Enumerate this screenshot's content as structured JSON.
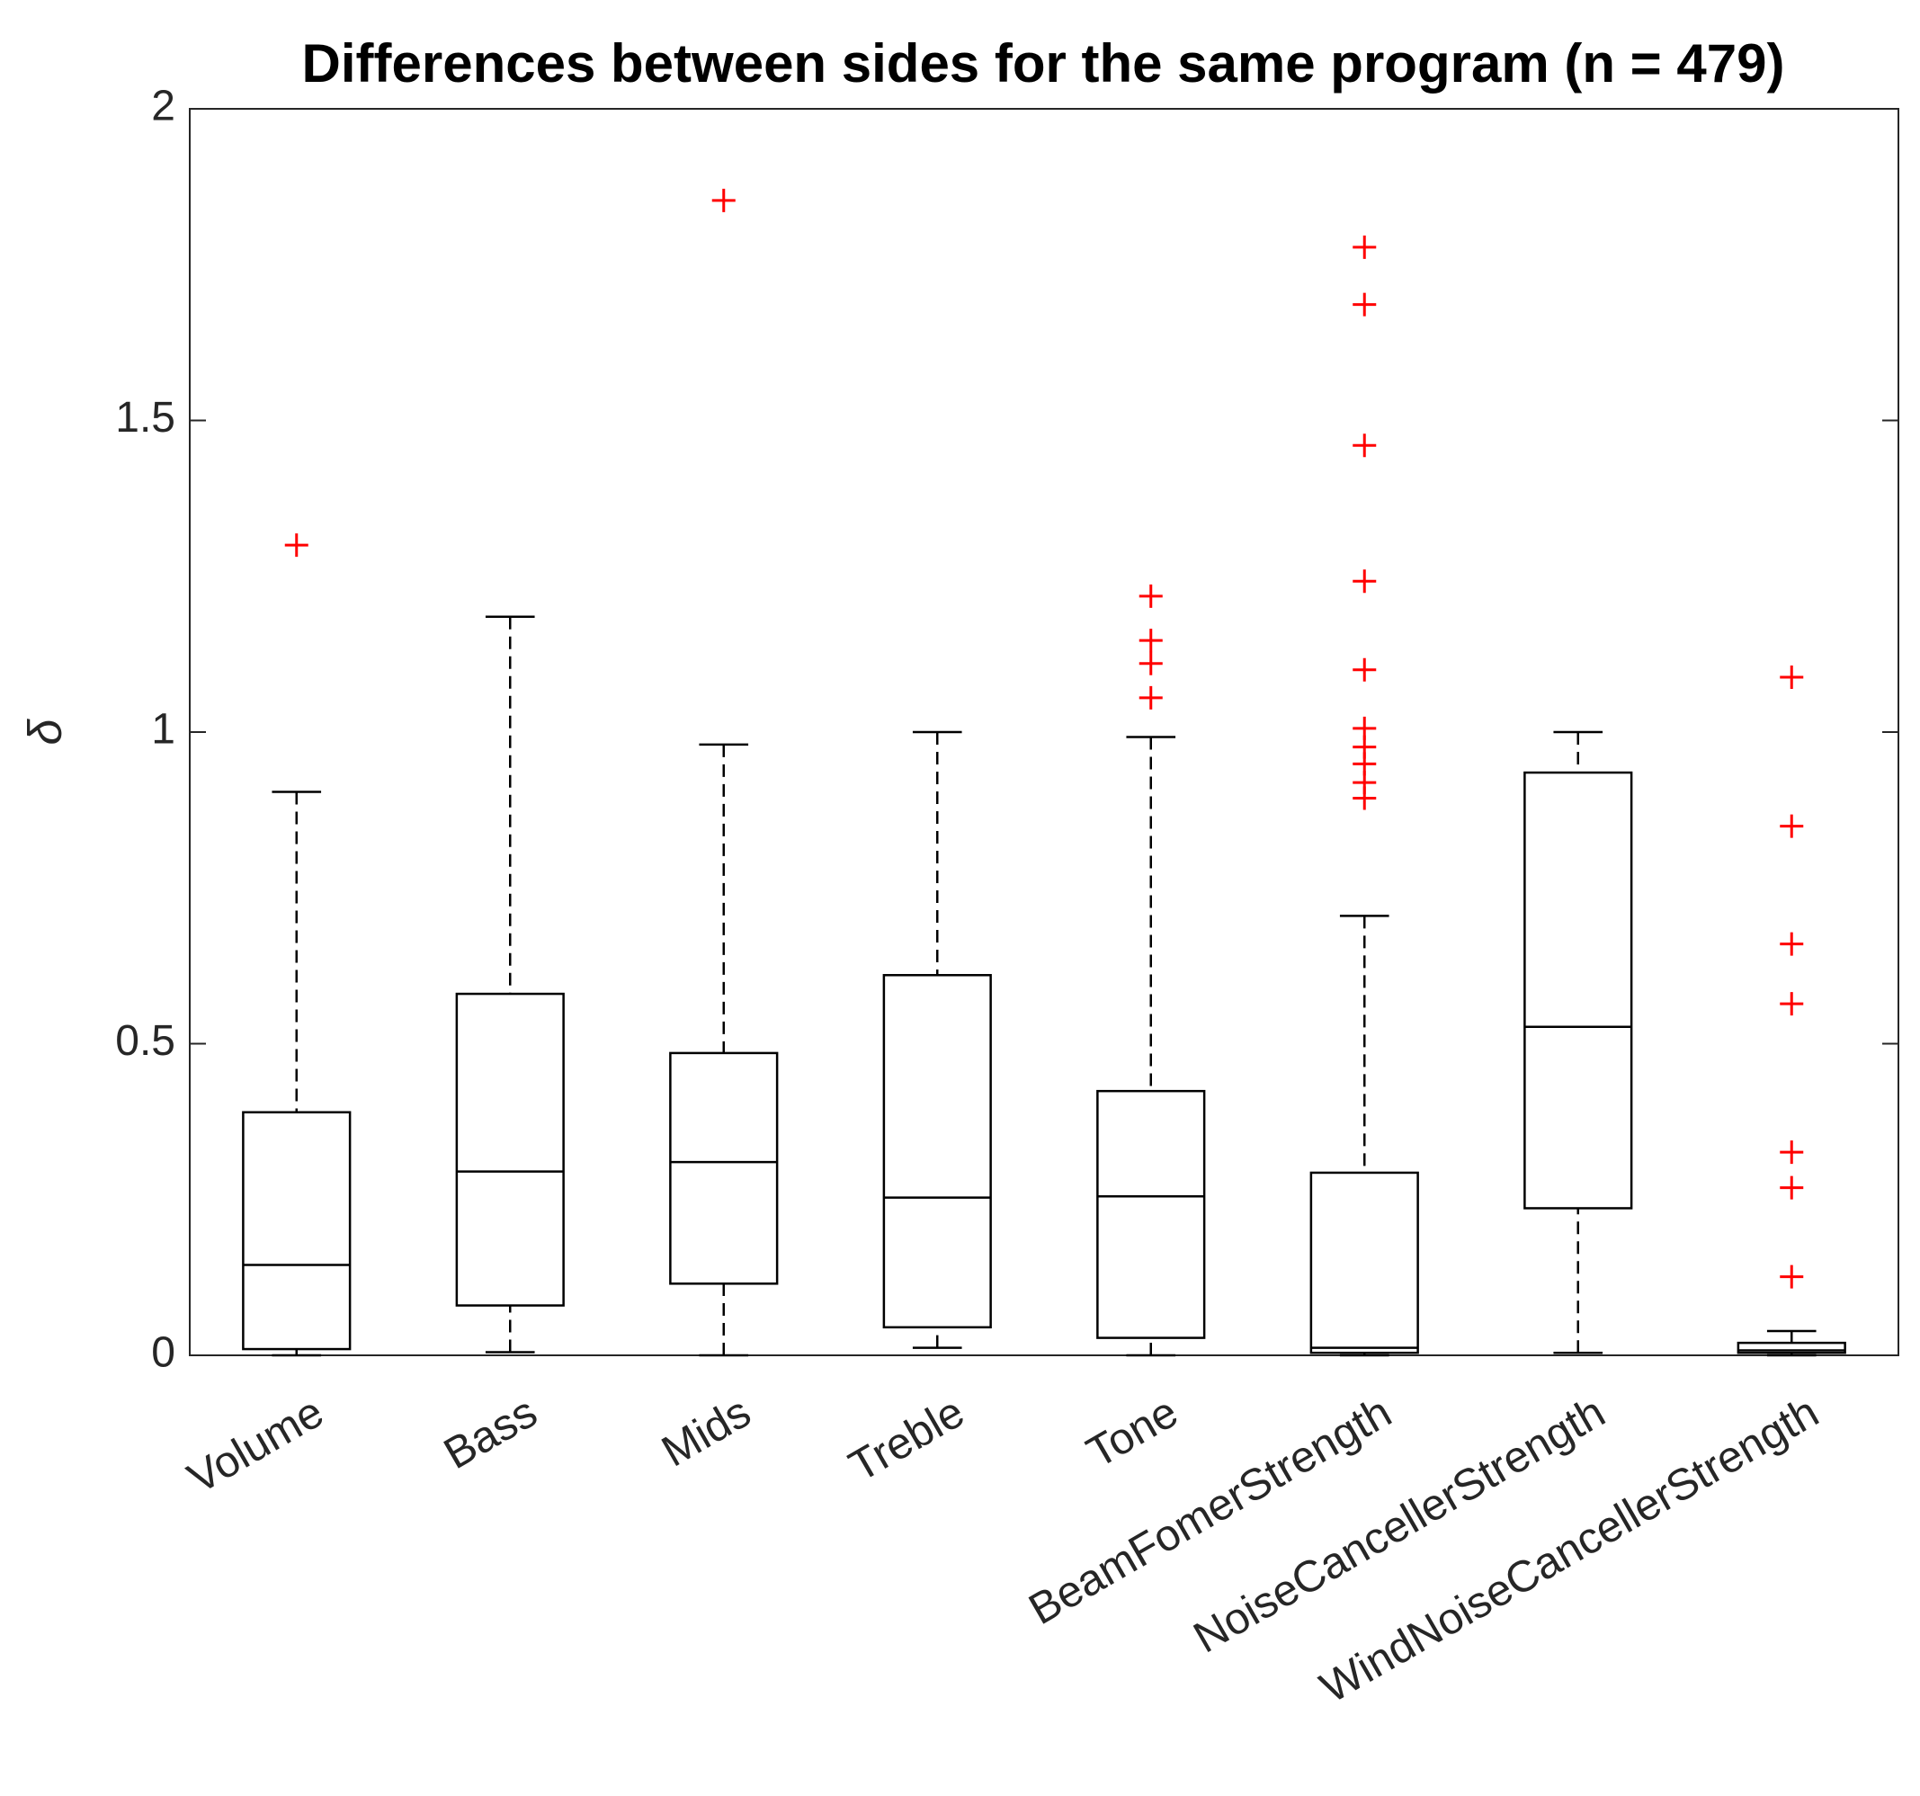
{
  "chart_data": {
    "type": "box",
    "title": "Differences between sides for the same program (n = 479)",
    "ylabel": "δ",
    "categories": [
      "Volume",
      "Bass",
      "Mids",
      "Treble",
      "Tone",
      "BeamFomerStrength",
      "NoiseCancellerStrength",
      "WindNoiseCancellerStrength"
    ],
    "boxes": [
      {
        "min": 0,
        "q1": 0.01,
        "median": 0.145,
        "q3": 0.39,
        "max": 0.904,
        "outliers": [
          1.3
        ]
      },
      {
        "min": 0.005,
        "q1": 0.08,
        "median": 0.295,
        "q3": 0.58,
        "max": 1.185,
        "outliers": []
      },
      {
        "min": 0,
        "q1": 0.115,
        "median": 0.31,
        "q3": 0.485,
        "max": 0.98,
        "outliers": [
          1.853
        ]
      },
      {
        "min": 0.012,
        "q1": 0.045,
        "median": 0.253,
        "q3": 0.61,
        "max": 1.0,
        "outliers": []
      },
      {
        "min": 0,
        "q1": 0.028,
        "median": 0.255,
        "q3": 0.424,
        "max": 0.992,
        "outliers": [
          1.218,
          1.147,
          1.11,
          1.055
        ]
      },
      {
        "min": 0,
        "q1": 0.004,
        "median": 0.012,
        "q3": 0.293,
        "max": 0.705,
        "outliers": [
          1.778,
          1.686,
          1.46,
          1.242,
          1.1,
          1.006,
          0.976,
          0.949,
          0.919,
          0.894
        ]
      },
      {
        "min": 0.004,
        "q1": 0.236,
        "median": 0.527,
        "q3": 0.935,
        "max": 1.0,
        "outliers": []
      },
      {
        "min": 0,
        "q1": 0.004,
        "median": 0.008,
        "q3": 0.02,
        "max": 0.039,
        "outliers": [
          1.088,
          0.849,
          0.66,
          0.564,
          0.326,
          0.269,
          0.126
        ]
      }
    ],
    "box_color": "#000000",
    "outlier_color": "#ff0000",
    "ylim": [
      0,
      2
    ],
    "yticks": [
      0,
      0.5,
      1,
      1.5,
      2
    ]
  }
}
